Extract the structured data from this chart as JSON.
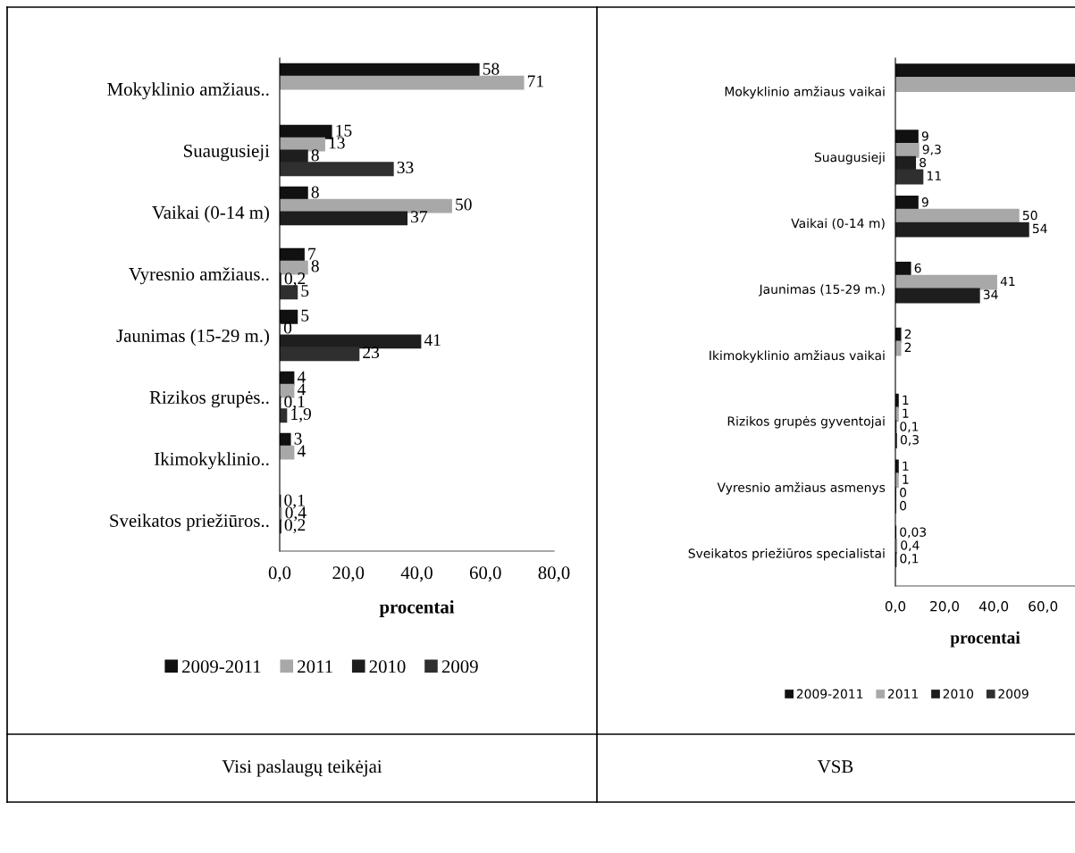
{
  "chart_data": [
    {
      "type": "bar",
      "orientation": "horizontal",
      "categories": [
        "Mokyklinio amžiaus..",
        "Suaugusieji",
        "Vaikai (0-14 m)",
        "Vyresnio amžiaus..",
        "Jaunimas (15-29 m.)",
        "Rizikos grupės..",
        "Ikimokyklinio..",
        "Sveikatos priežiūros.."
      ],
      "series": [
        {
          "name": "2009-2011",
          "color": "#111111",
          "values": [
            58,
            15,
            8,
            7,
            5,
            4,
            3,
            0.1
          ],
          "value_labels": [
            "58",
            "15",
            "8",
            "7",
            "5",
            "4",
            "3",
            "0,1"
          ]
        },
        {
          "name": "2011",
          "color": "#a8a8a8",
          "values": [
            71,
            13,
            50,
            8,
            0,
            4,
            4,
            0.4
          ],
          "value_labels": [
            "71",
            "13",
            "50",
            "8",
            "0",
            "4",
            "4",
            "0,4"
          ]
        },
        {
          "name": "2010",
          "color": "#1e1e1e",
          "values": [
            null,
            8,
            37,
            0.2,
            41,
            0.1,
            null,
            0.2
          ],
          "value_labels": [
            null,
            "8",
            "37",
            "0,2",
            "41",
            "0,1",
            null,
            "0,2"
          ]
        },
        {
          "name": "2009",
          "color": "#2f2f2f",
          "values": [
            null,
            33,
            null,
            5,
            23,
            1.9,
            null,
            null
          ],
          "value_labels": [
            null,
            "33",
            null,
            "5",
            "23",
            "1,9",
            null,
            null
          ]
        }
      ],
      "xlabel": "procentai",
      "xlim": [
        0,
        80
      ],
      "xticks": [
        {
          "value": 0,
          "label": "0,0"
        },
        {
          "value": 20,
          "label": "20,0"
        },
        {
          "value": 40,
          "label": "40,0"
        },
        {
          "value": 60,
          "label": "60,0"
        },
        {
          "value": 80,
          "label": "80,0"
        }
      ],
      "legend": "bottom",
      "annotations": [
        "Visi paslaugų teikėjai"
      ]
    },
    {
      "type": "bar",
      "orientation": "horizontal",
      "categories": [
        "Mokyklinio amžiaus vaikai",
        "Suaugusieji",
        "Vaikai (0-14 m)",
        "Jaunimas (15-29 m.)",
        "Ikimokyklinio amžiaus vaikai",
        "Rizikos grupės gyventojai",
        "Vyresnio amžiaus asmenys",
        "Sveikatos priežiūros specialistai"
      ],
      "series": [
        {
          "name": "2009-2011",
          "color": "#111111",
          "values": [
            73,
            9,
            9,
            6,
            2,
            1,
            1,
            0.03
          ],
          "value_labels": [
            null,
            "9",
            "9",
            "6",
            "2",
            "1",
            "1",
            "0,03"
          ]
        },
        {
          "name": "2011",
          "color": "#a8a8a8",
          "values": [
            73,
            9.3,
            50,
            41,
            2,
            1,
            1,
            0.4
          ],
          "value_labels": [
            null,
            "9,3",
            "50",
            "41",
            "2",
            "1",
            "1",
            "0,4"
          ]
        },
        {
          "name": "2010",
          "color": "#1e1e1e",
          "values": [
            null,
            8,
            54,
            34,
            null,
            0.1,
            0,
            0.1
          ],
          "value_labels": [
            null,
            "8",
            "54",
            "34",
            null,
            "0,1",
            "0",
            "0,1"
          ]
        },
        {
          "name": "2009",
          "color": "#2f2f2f",
          "values": [
            null,
            11,
            null,
            null,
            null,
            0.3,
            0,
            null
          ],
          "value_labels": [
            null,
            "11",
            null,
            null,
            null,
            "0,3",
            "0",
            null
          ]
        }
      ],
      "xlabel": "procentai",
      "xlim": [
        0,
        73
      ],
      "xticks": [
        {
          "value": 0,
          "label": "0,0"
        },
        {
          "value": 20,
          "label": "20,0"
        },
        {
          "value": 40,
          "label": "40,0"
        },
        {
          "value": 60,
          "label": "60,0"
        }
      ],
      "legend": "bottom",
      "annotations": [
        "VSB"
      ]
    }
  ]
}
